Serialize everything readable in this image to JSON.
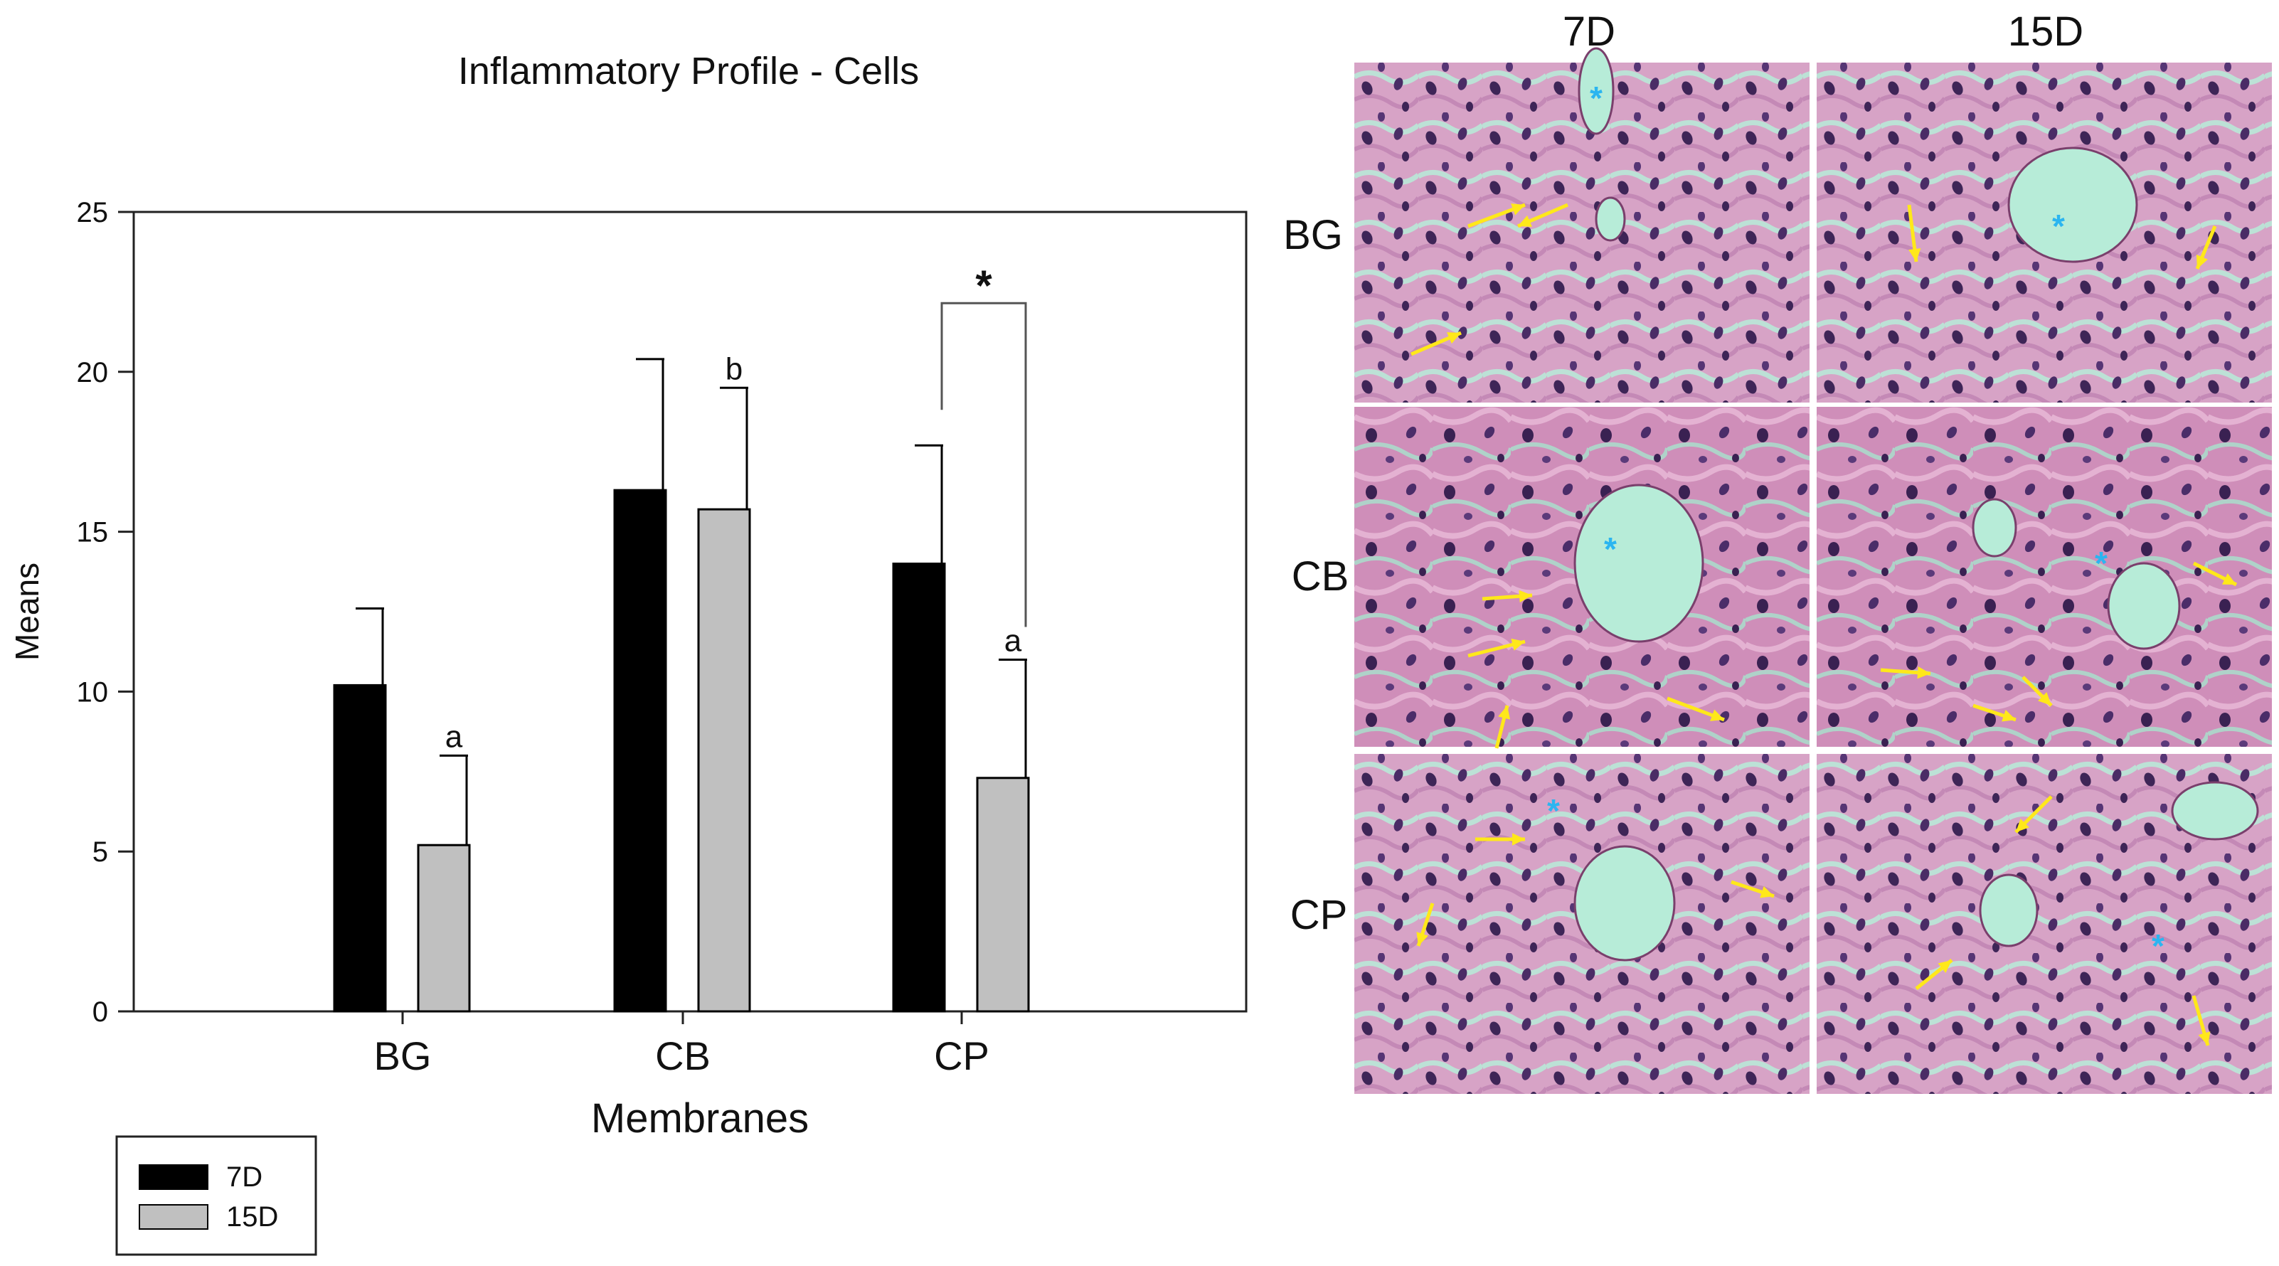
{
  "chart_data": {
    "type": "bar",
    "title": "Inflammatory Profile - Cells",
    "xlabel": "Membranes",
    "ylabel": "Means",
    "ylim": [
      0,
      25
    ],
    "yticks": [
      "0",
      "5",
      "10",
      "15",
      "20",
      "25"
    ],
    "categories": [
      "BG",
      "CB",
      "CP"
    ],
    "series": [
      {
        "name": "7D",
        "values": [
          10.2,
          16.3,
          14.0
        ],
        "errors": [
          2.4,
          4.1,
          3.7
        ],
        "color": "#000000"
      },
      {
        "name": "15D",
        "values": [
          5.2,
          15.7,
          7.3
        ],
        "errors": [
          2.8,
          3.8,
          3.7
        ],
        "color": "#c0c0c0"
      }
    ],
    "annotations": [
      {
        "category": "BG",
        "series": "15D",
        "text": "a"
      },
      {
        "category": "CB",
        "series": "15D",
        "text": "b"
      },
      {
        "category": "CP",
        "series": "15D",
        "text": "a"
      }
    ],
    "significance": {
      "category": "CP",
      "text": "*"
    },
    "legend": {
      "position": "bottom-left",
      "entries": [
        "7D",
        "15D"
      ]
    },
    "grid": false
  },
  "histology": {
    "columns": [
      "7D",
      "15D"
    ],
    "rows": [
      "BG",
      "CB",
      "CP"
    ],
    "colors": {
      "stain_bg": "#d39cc2",
      "nuclei": "#3e2557",
      "lumen": "#b7ecd8",
      "arrow": "#ffe81a",
      "asterisk": "#2bb5f0"
    },
    "panels": [
      {
        "row": "BG",
        "column": "7D",
        "marker": "*",
        "icons": [
          "arrow-icon",
          "asterisk-icon"
        ]
      },
      {
        "row": "BG",
        "column": "15D",
        "marker": "*",
        "icons": [
          "arrow-icon",
          "asterisk-icon"
        ]
      },
      {
        "row": "CB",
        "column": "7D",
        "marker": "*",
        "icons": [
          "arrow-icon",
          "asterisk-icon"
        ]
      },
      {
        "row": "CB",
        "column": "15D",
        "marker": "*",
        "icons": [
          "arrow-icon",
          "asterisk-icon"
        ]
      },
      {
        "row": "CP",
        "column": "7D",
        "marker": "*",
        "icons": [
          "arrow-icon",
          "asterisk-icon"
        ]
      },
      {
        "row": "CP",
        "column": "15D",
        "marker": "*",
        "icons": [
          "arrow-icon",
          "asterisk-icon"
        ]
      }
    ]
  }
}
